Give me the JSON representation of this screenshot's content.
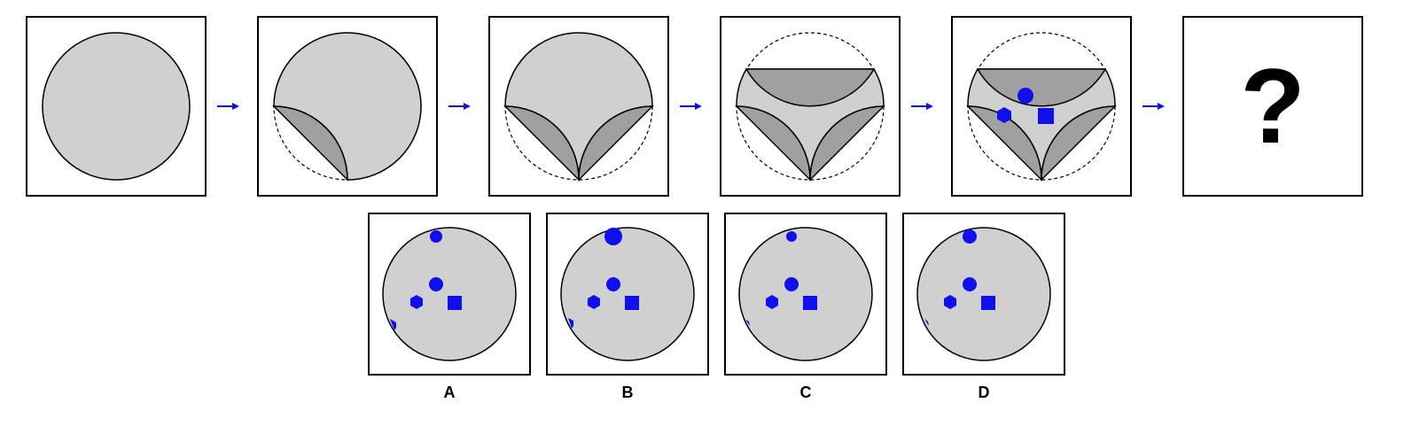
{
  "colors": {
    "light_fill": "#d0d0d0",
    "dark_fill": "#a0a0a0",
    "accent": "#1010ee",
    "stroke": "#000000"
  },
  "sequence": {
    "unknown_label": "?"
  },
  "options": [
    {
      "label": "A"
    },
    {
      "label": "B"
    },
    {
      "label": "C"
    },
    {
      "label": "D"
    }
  ]
}
